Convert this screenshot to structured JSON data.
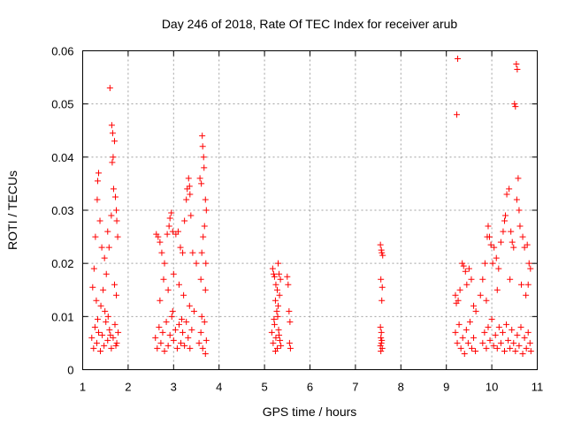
{
  "chart_data": {
    "type": "scatter",
    "title": "Day 246 of 2018, Rate Of TEC Index for receiver arub",
    "xlabel": "GPS time / hours",
    "ylabel": "ROTI / TECUs",
    "xlim": [
      1,
      11
    ],
    "ylim": [
      0,
      0.06
    ],
    "xticks": [
      1,
      2,
      3,
      4,
      5,
      6,
      7,
      8,
      9,
      10,
      11
    ],
    "xtick_labels": [
      "1",
      "2",
      "3",
      "4",
      "5",
      "6",
      "7",
      "8",
      "9",
      "10",
      "11"
    ],
    "yticks": [
      0,
      0.01,
      0.02,
      0.03,
      0.04,
      0.05,
      0.06
    ],
    "ytick_labels": [
      "0",
      "0.01",
      "0.02",
      "0.03",
      "0.04",
      "0.05",
      "0.06"
    ],
    "grid": true,
    "marker": "+",
    "color": "#ff0000",
    "series": [
      {
        "name": "ROTI",
        "points": [
          [
            1.22,
            0.0155
          ],
          [
            1.25,
            0.019
          ],
          [
            1.28,
            0.025
          ],
          [
            1.32,
            0.032
          ],
          [
            1.33,
            0.0355
          ],
          [
            1.35,
            0.037
          ],
          [
            1.38,
            0.028
          ],
          [
            1.42,
            0.023
          ],
          [
            1.48,
            0.021
          ],
          [
            1.55,
            0.026
          ],
          [
            1.6,
            0.053
          ],
          [
            1.64,
            0.046
          ],
          [
            1.66,
            0.0445
          ],
          [
            1.67,
            0.04
          ],
          [
            1.65,
            0.039
          ],
          [
            1.7,
            0.043
          ],
          [
            1.68,
            0.034
          ],
          [
            1.72,
            0.0325
          ],
          [
            1.74,
            0.03
          ],
          [
            1.75,
            0.028
          ],
          [
            1.77,
            0.025
          ],
          [
            1.63,
            0.029
          ],
          [
            1.58,
            0.023
          ],
          [
            1.45,
            0.015
          ],
          [
            1.52,
            0.018
          ],
          [
            1.3,
            0.013
          ],
          [
            1.4,
            0.012
          ],
          [
            1.56,
            0.01
          ],
          [
            1.7,
            0.016
          ],
          [
            1.74,
            0.014
          ],
          [
            1.2,
            0.006
          ],
          [
            1.24,
            0.004
          ],
          [
            1.27,
            0.008
          ],
          [
            1.31,
            0.005
          ],
          [
            1.35,
            0.007
          ],
          [
            1.39,
            0.0035
          ],
          [
            1.43,
            0.0065
          ],
          [
            1.47,
            0.0045
          ],
          [
            1.51,
            0.009
          ],
          [
            1.55,
            0.0055
          ],
          [
            1.59,
            0.0075
          ],
          [
            1.63,
            0.004
          ],
          [
            1.67,
            0.006
          ],
          [
            1.71,
            0.0085
          ],
          [
            1.75,
            0.005
          ],
          [
            1.78,
            0.007
          ],
          [
            1.33,
            0.0095
          ],
          [
            1.49,
            0.011
          ],
          [
            1.61,
            0.0065
          ],
          [
            1.73,
            0.0045
          ],
          [
            2.62,
            0.0255
          ],
          [
            2.66,
            0.025
          ],
          [
            2.7,
            0.024
          ],
          [
            2.74,
            0.022
          ],
          [
            2.8,
            0.02
          ],
          [
            2.86,
            0.0255
          ],
          [
            2.9,
            0.027
          ],
          [
            2.92,
            0.0285
          ],
          [
            2.95,
            0.0295
          ],
          [
            2.98,
            0.026
          ],
          [
            3.05,
            0.0255
          ],
          [
            3.1,
            0.026
          ],
          [
            3.15,
            0.023
          ],
          [
            3.2,
            0.022
          ],
          [
            3.24,
            0.028
          ],
          [
            3.28,
            0.032
          ],
          [
            3.3,
            0.034
          ],
          [
            3.33,
            0.036
          ],
          [
            3.35,
            0.0345
          ],
          [
            3.36,
            0.033
          ],
          [
            3.38,
            0.029
          ],
          [
            3.42,
            0.022
          ],
          [
            3.5,
            0.02
          ],
          [
            3.58,
            0.036
          ],
          [
            3.61,
            0.035
          ],
          [
            3.63,
            0.044
          ],
          [
            3.64,
            0.042
          ],
          [
            3.66,
            0.04
          ],
          [
            3.67,
            0.038
          ],
          [
            3.7,
            0.032
          ],
          [
            3.72,
            0.03
          ],
          [
            3.68,
            0.027
          ],
          [
            3.65,
            0.025
          ],
          [
            3.62,
            0.022
          ],
          [
            3.71,
            0.02
          ],
          [
            2.78,
            0.017
          ],
          [
            2.88,
            0.015
          ],
          [
            3.0,
            0.018
          ],
          [
            3.12,
            0.016
          ],
          [
            3.22,
            0.014
          ],
          [
            3.35,
            0.012
          ],
          [
            3.6,
            0.017
          ],
          [
            3.7,
            0.015
          ],
          [
            2.7,
            0.013
          ],
          [
            3.45,
            0.011
          ],
          [
            2.6,
            0.006
          ],
          [
            2.64,
            0.004
          ],
          [
            2.68,
            0.008
          ],
          [
            2.72,
            0.005
          ],
          [
            2.76,
            0.007
          ],
          [
            2.8,
            0.0035
          ],
          [
            2.84,
            0.009
          ],
          [
            2.88,
            0.0045
          ],
          [
            2.92,
            0.0065
          ],
          [
            2.96,
            0.01
          ],
          [
            3.0,
            0.0055
          ],
          [
            3.04,
            0.0075
          ],
          [
            3.08,
            0.004
          ],
          [
            3.12,
            0.0085
          ],
          [
            3.16,
            0.005
          ],
          [
            3.2,
            0.007
          ],
          [
            3.24,
            0.0045
          ],
          [
            3.28,
            0.009
          ],
          [
            3.32,
            0.006
          ],
          [
            3.36,
            0.004
          ],
          [
            3.4,
            0.0075
          ],
          [
            3.56,
            0.005
          ],
          [
            3.6,
            0.007
          ],
          [
            3.64,
            0.004
          ],
          [
            3.68,
            0.009
          ],
          [
            3.72,
            0.0055
          ],
          [
            3.62,
            0.01
          ],
          [
            3.7,
            0.003
          ],
          [
            2.98,
            0.011
          ],
          [
            3.18,
            0.0095
          ],
          [
            5.18,
            0.019
          ],
          [
            5.2,
            0.018
          ],
          [
            5.22,
            0.0175
          ],
          [
            5.25,
            0.016
          ],
          [
            5.28,
            0.015
          ],
          [
            5.3,
            0.02
          ],
          [
            5.32,
            0.018
          ],
          [
            5.35,
            0.017
          ],
          [
            5.5,
            0.0175
          ],
          [
            5.52,
            0.016
          ],
          [
            5.54,
            0.011
          ],
          [
            5.56,
            0.009
          ],
          [
            5.55,
            0.005
          ],
          [
            5.57,
            0.004
          ],
          [
            5.24,
            0.013
          ],
          [
            5.3,
            0.012
          ],
          [
            5.27,
            0.011
          ],
          [
            5.33,
            0.014
          ],
          [
            5.16,
            0.007
          ],
          [
            5.19,
            0.005
          ],
          [
            5.22,
            0.0085
          ],
          [
            5.25,
            0.006
          ],
          [
            5.28,
            0.004
          ],
          [
            5.31,
            0.0075
          ],
          [
            5.34,
            0.0055
          ],
          [
            5.21,
            0.0095
          ],
          [
            5.29,
            0.01
          ],
          [
            5.36,
            0.0045
          ],
          [
            5.24,
            0.0035
          ],
          [
            5.32,
            0.0065
          ],
          [
            7.55,
            0.0235
          ],
          [
            7.57,
            0.0225
          ],
          [
            7.58,
            0.022
          ],
          [
            7.6,
            0.0215
          ],
          [
            7.56,
            0.017
          ],
          [
            7.59,
            0.0155
          ],
          [
            7.58,
            0.013
          ],
          [
            7.55,
            0.008
          ],
          [
            7.57,
            0.007
          ],
          [
            7.56,
            0.006
          ],
          [
            7.58,
            0.0055
          ],
          [
            7.57,
            0.005
          ],
          [
            7.55,
            0.0045
          ],
          [
            7.59,
            0.004
          ],
          [
            7.56,
            0.0035
          ],
          [
            9.25,
            0.0585
          ],
          [
            9.23,
            0.048
          ],
          [
            9.2,
            0.014
          ],
          [
            9.22,
            0.0125
          ],
          [
            9.26,
            0.013
          ],
          [
            9.3,
            0.015
          ],
          [
            9.35,
            0.02
          ],
          [
            9.38,
            0.0195
          ],
          [
            9.42,
            0.0185
          ],
          [
            9.45,
            0.016
          ],
          [
            9.5,
            0.019
          ],
          [
            9.55,
            0.017
          ],
          [
            9.6,
            0.012
          ],
          [
            9.75,
            0.014
          ],
          [
            9.8,
            0.017
          ],
          [
            9.85,
            0.02
          ],
          [
            9.9,
            0.025
          ],
          [
            9.92,
            0.027
          ],
          [
            9.95,
            0.025
          ],
          [
            9.98,
            0.0235
          ],
          [
            10.02,
            0.02
          ],
          [
            10.05,
            0.023
          ],
          [
            10.1,
            0.021
          ],
          [
            10.15,
            0.019
          ],
          [
            10.2,
            0.024
          ],
          [
            10.25,
            0.026
          ],
          [
            10.28,
            0.028
          ],
          [
            10.3,
            0.029
          ],
          [
            10.33,
            0.033
          ],
          [
            10.38,
            0.034
          ],
          [
            10.42,
            0.026
          ],
          [
            10.45,
            0.024
          ],
          [
            10.48,
            0.023
          ],
          [
            10.5,
            0.05
          ],
          [
            10.52,
            0.0495
          ],
          [
            10.54,
            0.0575
          ],
          [
            10.56,
            0.0565
          ],
          [
            10.58,
            0.036
          ],
          [
            10.55,
            0.032
          ],
          [
            10.6,
            0.03
          ],
          [
            10.62,
            0.027
          ],
          [
            10.68,
            0.025
          ],
          [
            10.72,
            0.023
          ],
          [
            10.78,
            0.0235
          ],
          [
            10.82,
            0.02
          ],
          [
            10.85,
            0.019
          ],
          [
            10.8,
            0.016
          ],
          [
            10.75,
            0.014
          ],
          [
            10.65,
            0.016
          ],
          [
            10.4,
            0.017
          ],
          [
            10.12,
            0.015
          ],
          [
            9.88,
            0.013
          ],
          [
            9.65,
            0.011
          ],
          [
            9.2,
            0.007
          ],
          [
            9.24,
            0.005
          ],
          [
            9.28,
            0.0085
          ],
          [
            9.32,
            0.004
          ],
          [
            9.36,
            0.006
          ],
          [
            9.4,
            0.003
          ],
          [
            9.44,
            0.0075
          ],
          [
            9.48,
            0.005
          ],
          [
            9.52,
            0.009
          ],
          [
            9.56,
            0.004
          ],
          [
            9.6,
            0.006
          ],
          [
            9.64,
            0.0035
          ],
          [
            9.8,
            0.005
          ],
          [
            9.84,
            0.007
          ],
          [
            9.88,
            0.004
          ],
          [
            9.92,
            0.008
          ],
          [
            9.96,
            0.0055
          ],
          [
            10.0,
            0.0095
          ],
          [
            10.04,
            0.0045
          ],
          [
            10.08,
            0.0065
          ],
          [
            10.12,
            0.004
          ],
          [
            10.16,
            0.008
          ],
          [
            10.2,
            0.005
          ],
          [
            10.24,
            0.007
          ],
          [
            10.28,
            0.0035
          ],
          [
            10.32,
            0.0085
          ],
          [
            10.36,
            0.0055
          ],
          [
            10.4,
            0.004
          ],
          [
            10.44,
            0.0075
          ],
          [
            10.48,
            0.005
          ],
          [
            10.52,
            0.0035
          ],
          [
            10.56,
            0.0065
          ],
          [
            10.6,
            0.0045
          ],
          [
            10.64,
            0.008
          ],
          [
            10.68,
            0.003
          ],
          [
            10.72,
            0.006
          ],
          [
            10.76,
            0.004
          ],
          [
            10.8,
            0.007
          ],
          [
            10.84,
            0.005
          ],
          [
            10.86,
            0.0035
          ]
        ]
      }
    ]
  }
}
